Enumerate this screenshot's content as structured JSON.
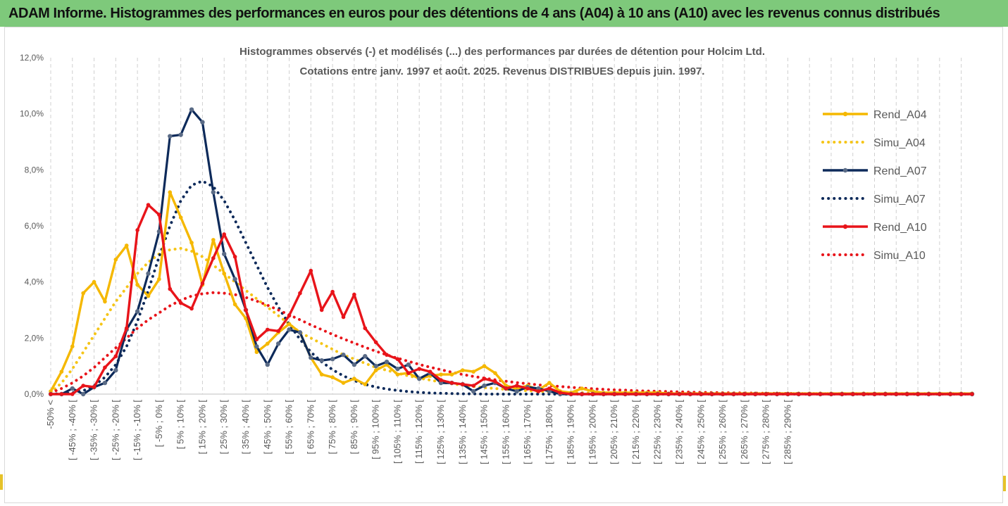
{
  "banner": {
    "title": "ADAM Informe. Histogrammes des performances en euros pour des détentions de 4 ans (A04) à 10 ans (A10) avec les revenus connus distribués"
  },
  "chart_data": {
    "type": "line",
    "title": "Histogrammes observés (-) et modélisés (...) des performances par durées de détention pour Holcim Ltd.",
    "subtitle": "Cotations entre janv. 1997 et août. 2025. Revenus DISTRIBUES depuis juin. 1997.",
    "ylim": [
      0,
      12
    ],
    "yticks": [
      "0,0%",
      "2,0%",
      "4,0%",
      "6,0%",
      "8,0%",
      "10,0%",
      "12,0%"
    ],
    "grid": "vertical dashed",
    "legend_position": "right",
    "x_labels": [
      "-50% <",
      "[ -45% ; -40% [",
      "[ -35% ; -30% [",
      "[ -25% ; -20% [",
      "[ -15% ; -10% [",
      "[ -5% ; 0% [",
      "[ 5% ; 10% [",
      "[ 15% ; 20% [",
      "[ 25% ; 30% [",
      "[ 35% ; 40% [",
      "[ 45% ; 50% [",
      "[ 55% ; 60% [",
      "[ 65% ; 70% [",
      "[ 75% ; 80% [",
      "[ 85% ; 90% [",
      "[ 95% ; 100% [",
      "[ 105% ; 110% [",
      "[ 115% ; 120% [",
      "[ 125% ; 130% [",
      "[ 135% ; 140% [",
      "[ 145% ; 150% [",
      "[ 155% ; 160% [",
      "[ 165% ; 170% [",
      "[ 175% ; 180% [",
      "[ 185% ; 190% [",
      "[ 195% ; 200% [",
      "[ 205% ; 210% [",
      "[ 215% ; 220% [",
      "[ 225% ; 230% [",
      "[ 235% ; 240% [",
      "[ 245% ; 250% [",
      "[ 255% ; 260% [",
      "[ 265% ; 270% [",
      "[ 275% ; 280% [",
      "[ 285% ; 290% ["
    ],
    "series": [
      {
        "name": "Rend_A04",
        "color": "#f5b800",
        "style": "solid",
        "values": [
          0.1,
          0.8,
          1.7,
          3.6,
          4.0,
          3.3,
          4.8,
          5.3,
          3.9,
          3.5,
          4.1,
          7.2,
          6.3,
          5.4,
          3.9,
          5.5,
          4.3,
          3.2,
          2.7,
          1.5,
          1.8,
          2.2,
          2.5,
          2.2,
          1.3,
          0.7,
          0.6,
          0.4,
          0.55,
          0.35,
          0.85,
          1.05,
          0.7,
          0.75,
          0.55,
          0.65,
          0.7,
          0.7,
          0.85,
          0.8,
          1.0,
          0.75,
          0.3,
          0.2,
          0.3,
          0.15,
          0.4,
          0.1,
          0.05,
          0.2,
          0.1,
          0.05,
          0.05,
          0.05,
          0.05,
          0.05,
          0.05,
          0.02,
          0.02,
          0.02,
          0.02,
          0.02,
          0.02,
          0.02,
          0.02,
          0.02,
          0.02,
          0.02,
          0.02,
          0.02,
          0.02,
          0.02,
          0.02,
          0.02,
          0.02,
          0.02,
          0.02,
          0.02,
          0.02,
          0.02,
          0.02,
          0.02,
          0.02,
          0.02,
          0.02,
          0.02
        ]
      },
      {
        "name": "Simu_A04",
        "color": "#f5c518",
        "style": "dotted",
        "values": [
          0.05,
          0.4,
          0.9,
          1.5,
          2.1,
          2.7,
          3.3,
          3.8,
          4.3,
          4.7,
          5.0,
          5.15,
          5.2,
          5.1,
          4.9,
          4.6,
          4.3,
          4.0,
          3.7,
          3.4,
          3.1,
          2.8,
          2.5,
          2.2,
          2.0,
          1.8,
          1.6,
          1.4,
          1.25,
          1.1,
          0.95,
          0.85,
          0.75,
          0.65,
          0.57,
          0.5,
          0.43,
          0.37,
          0.32,
          0.27,
          0.23,
          0.2,
          0.17,
          0.14,
          0.12,
          0.1,
          0.08,
          0.07,
          0.06,
          0.05,
          0.04,
          0.03,
          0.03,
          0.02,
          0.02,
          0.02,
          0.02,
          0.02,
          0.02,
          0.02,
          0.02,
          0.02,
          0.02,
          0.02,
          0.02,
          0.02,
          0.02,
          0.02,
          0.02,
          0.02,
          0.02,
          0.02,
          0.02,
          0.02,
          0.02,
          0.02,
          0.02,
          0.02,
          0.02,
          0.02,
          0.02,
          0.02,
          0.02,
          0.02,
          0.02,
          0.02
        ]
      },
      {
        "name": "Rend_A07",
        "color": "#0d2a5a",
        "style": "solid",
        "values": [
          0.0,
          0.0,
          0.2,
          0.0,
          0.25,
          0.4,
          0.85,
          2.3,
          2.95,
          4.3,
          5.8,
          9.2,
          9.25,
          10.15,
          9.7,
          7.2,
          5.0,
          4.1,
          3.0,
          1.7,
          1.05,
          1.8,
          2.3,
          2.2,
          1.3,
          1.2,
          1.25,
          1.4,
          1.05,
          1.35,
          1.0,
          1.15,
          0.9,
          1.05,
          0.55,
          0.75,
          0.4,
          0.4,
          0.35,
          0.1,
          0.3,
          0.4,
          0.2,
          0.1,
          0.25,
          0.2,
          0.1,
          0.0,
          0.0,
          0.0,
          0.0,
          0.0,
          0.0,
          0.0,
          0.0,
          0.0,
          0.0,
          0.0,
          0.0,
          0.0,
          0.0,
          0.0,
          0.0,
          0.0,
          0.0,
          0.0,
          0.0,
          0.0,
          0.0,
          0.0,
          0.0,
          0.0,
          0.0,
          0.0,
          0.0,
          0.0,
          0.0,
          0.0,
          0.0,
          0.0,
          0.0,
          0.0,
          0.0,
          0.0,
          0.0,
          0.0
        ]
      },
      {
        "name": "Simu_A07",
        "color": "#0d2a5a",
        "style": "dotted",
        "values": [
          0.0,
          0.02,
          0.05,
          0.12,
          0.3,
          0.6,
          1.05,
          1.7,
          2.6,
          3.7,
          4.9,
          6.0,
          6.9,
          7.45,
          7.6,
          7.4,
          6.9,
          6.2,
          5.4,
          4.6,
          3.8,
          3.1,
          2.5,
          1.95,
          1.5,
          1.15,
          0.87,
          0.65,
          0.48,
          0.35,
          0.25,
          0.18,
          0.13,
          0.09,
          0.06,
          0.04,
          0.03,
          0.02,
          0.01,
          0.01,
          0.0,
          0.0,
          0.0,
          0.0,
          0.0,
          0.0,
          0.0,
          0.0,
          0.0,
          0.0,
          0.0,
          0.0,
          0.0,
          0.0,
          0.0,
          0.0,
          0.0,
          0.0,
          0.0,
          0.0,
          0.0,
          0.0,
          0.0,
          0.0,
          0.0,
          0.0,
          0.0,
          0.0,
          0.0,
          0.0,
          0.0,
          0.0,
          0.0,
          0.0,
          0.0,
          0.0,
          0.0,
          0.0,
          0.0,
          0.0,
          0.0,
          0.0,
          0.0,
          0.0,
          0.0,
          0.0
        ]
      },
      {
        "name": "Rend_A10",
        "color": "#e8141a",
        "style": "solid",
        "values": [
          0.0,
          0.0,
          0.0,
          0.3,
          0.25,
          0.95,
          1.35,
          2.35,
          5.85,
          6.75,
          6.4,
          3.75,
          3.25,
          3.05,
          3.95,
          4.85,
          5.7,
          4.9,
          3.0,
          1.95,
          2.3,
          2.25,
          2.8,
          3.6,
          4.4,
          3.0,
          3.65,
          2.75,
          3.55,
          2.35,
          1.85,
          1.4,
          1.25,
          0.75,
          0.9,
          0.8,
          0.5,
          0.4,
          0.35,
          0.3,
          0.55,
          0.45,
          0.2,
          0.3,
          0.2,
          0.1,
          0.2,
          0.05,
          0.0,
          0.0,
          0.0,
          0.0,
          0.0,
          0.0,
          0.0,
          0.0,
          0.0,
          0.0,
          0.0,
          0.0,
          0.0,
          0.0,
          0.0,
          0.0,
          0.0,
          0.0,
          0.0,
          0.0,
          0.0,
          0.0,
          0.0,
          0.0,
          0.0,
          0.0,
          0.0,
          0.0,
          0.0,
          0.0,
          0.0,
          0.0,
          0.0,
          0.0,
          0.0,
          0.0,
          0.0,
          0.0
        ]
      },
      {
        "name": "Simu_A10",
        "color": "#e8141a",
        "style": "dotted",
        "values": [
          0.05,
          0.2,
          0.4,
          0.65,
          0.95,
          1.3,
          1.65,
          2.0,
          2.35,
          2.65,
          2.9,
          3.15,
          3.35,
          3.5,
          3.58,
          3.62,
          3.6,
          3.55,
          3.45,
          3.32,
          3.17,
          3.0,
          2.83,
          2.65,
          2.47,
          2.3,
          2.13,
          1.97,
          1.82,
          1.67,
          1.53,
          1.4,
          1.28,
          1.17,
          1.06,
          0.96,
          0.87,
          0.78,
          0.7,
          0.63,
          0.57,
          0.51,
          0.46,
          0.41,
          0.37,
          0.33,
          0.3,
          0.27,
          0.24,
          0.21,
          0.19,
          0.17,
          0.15,
          0.14,
          0.12,
          0.11,
          0.1,
          0.09,
          0.08,
          0.07,
          0.06,
          0.055,
          0.05,
          0.045,
          0.04,
          0.035,
          0.03,
          0.027,
          0.024,
          0.021,
          0.019,
          0.017,
          0.015,
          0.013,
          0.012,
          0.011,
          0.01,
          0.009,
          0.008,
          0.007,
          0.006,
          0.005,
          0.005,
          0.004,
          0.004,
          0.003
        ]
      }
    ]
  }
}
